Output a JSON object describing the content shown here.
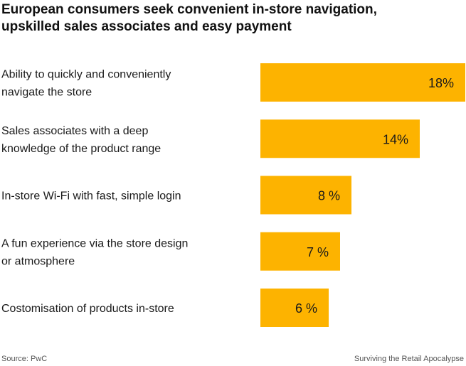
{
  "title": {
    "line1": "European consumers seek convenient in-store navigation,",
    "line2": "upskilled sales associates and easy payment"
  },
  "footer": {
    "source": "Source: PwC",
    "credit": "Surviving the Retail Apocalypse"
  },
  "colors": {
    "bar": "#FDB300",
    "text": "#1a1a1a"
  },
  "chart_data": {
    "type": "bar",
    "orientation": "horizontal",
    "categories": [
      [
        "Ability to quickly and conveniently",
        "navigate the store"
      ],
      [
        "Sales associates with a deep",
        "knowledge of the product range"
      ],
      [
        "In-store Wi-Fi with fast, simple login"
      ],
      [
        "A fun experience via the store design",
        "or atmosphere"
      ],
      [
        "Costomisation of products in-store"
      ]
    ],
    "values": [
      18,
      14,
      8,
      7,
      6
    ],
    "labels": [
      "18%",
      "14%",
      "8 %",
      "7 %",
      "6 %"
    ],
    "xlim": [
      0,
      18
    ],
    "grid": false
  }
}
